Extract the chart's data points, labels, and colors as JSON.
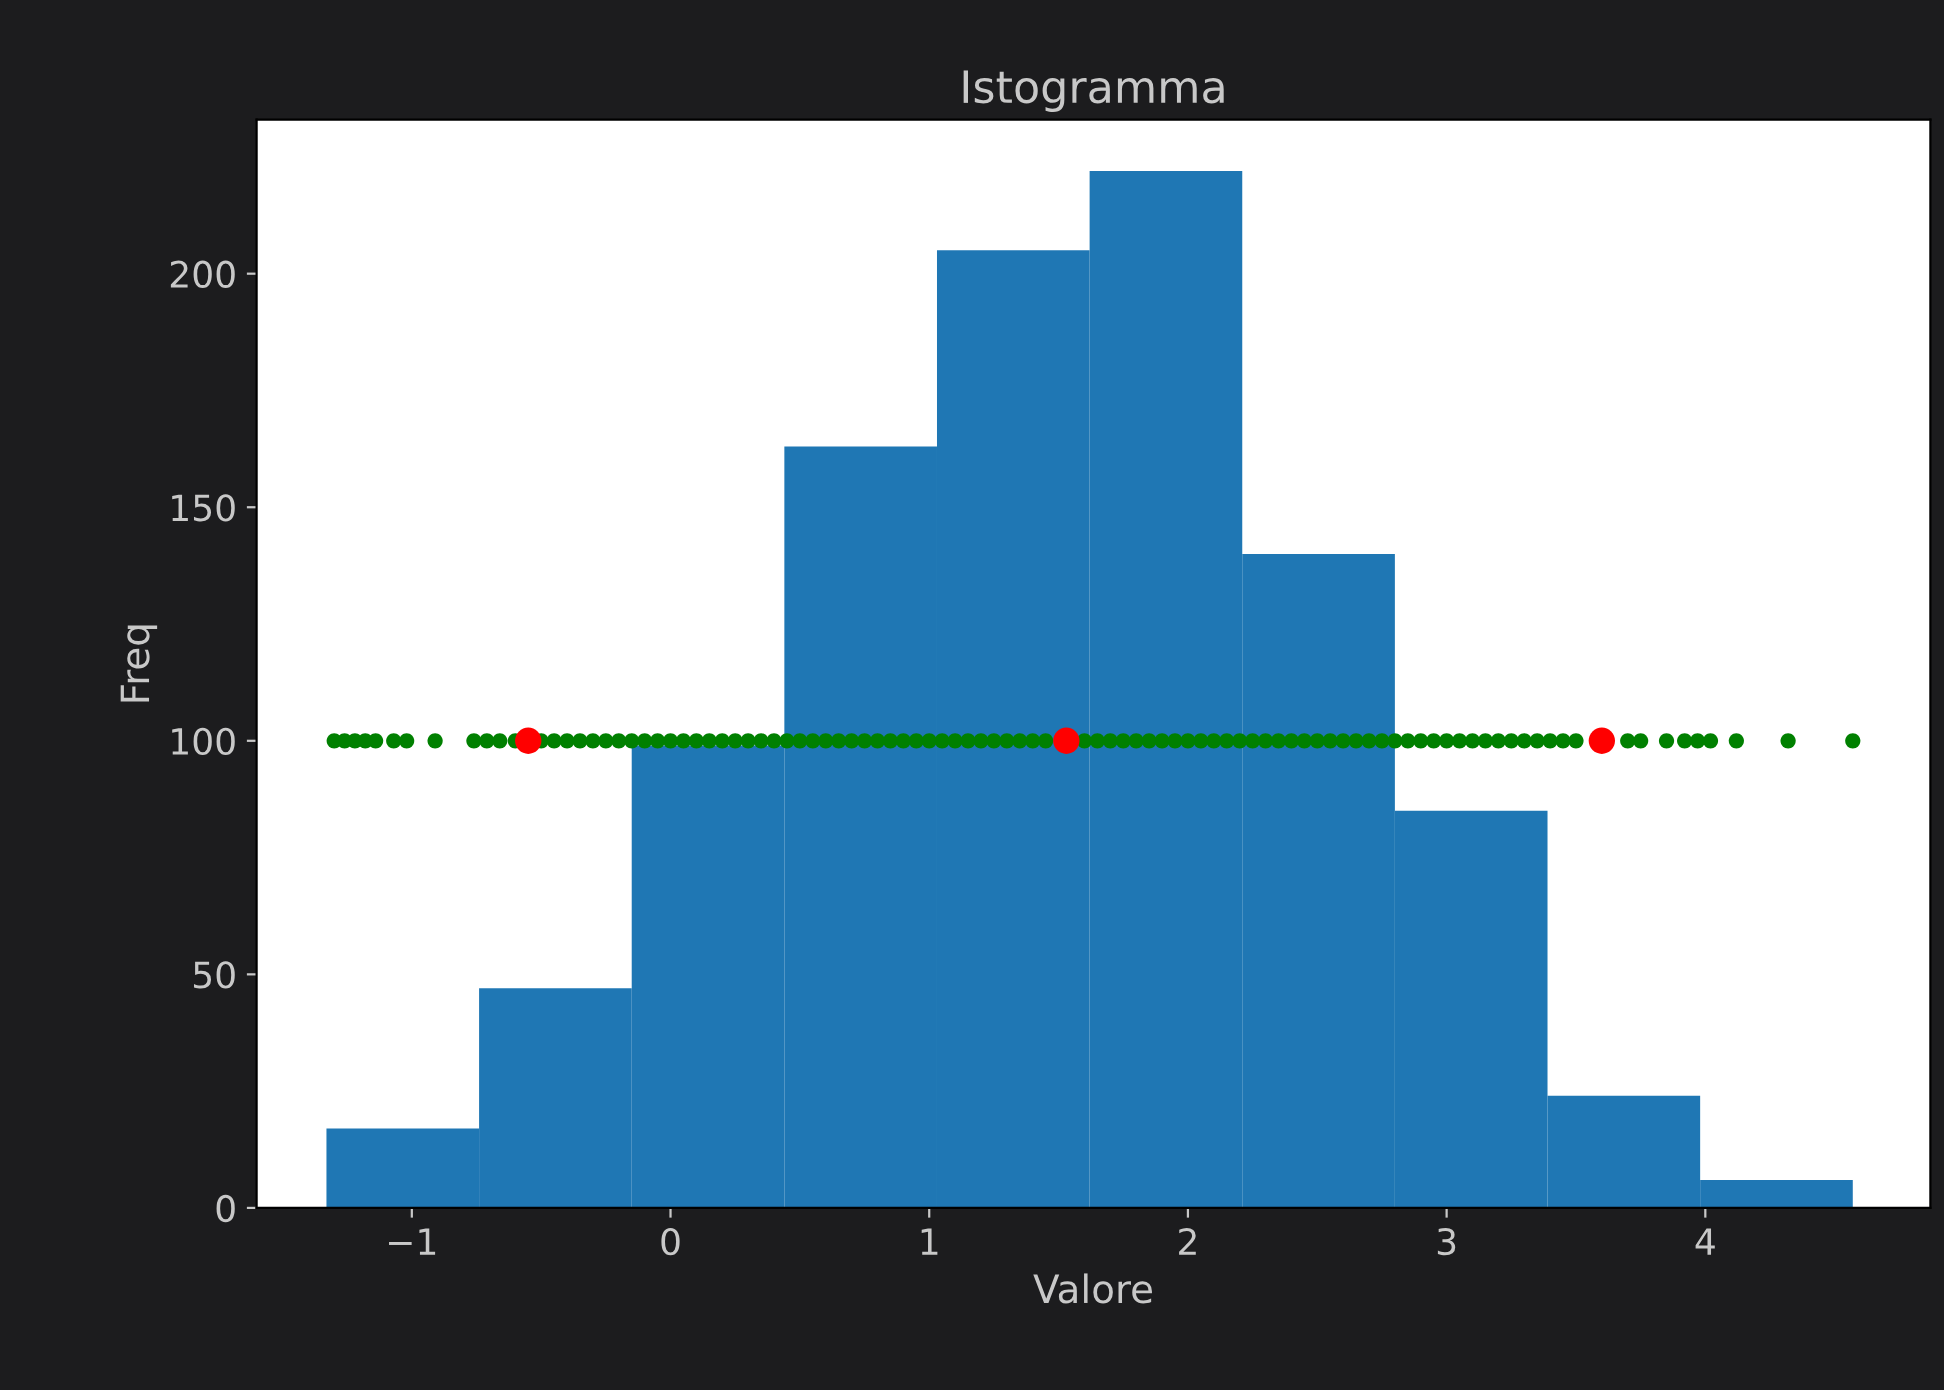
{
  "chart_data": {
    "type": "histogram",
    "title": "Istogramma",
    "xlabel": "Valore",
    "ylabel": "Freq",
    "bins": [
      -1.33,
      -0.74,
      -0.15,
      0.44,
      1.03,
      1.62,
      2.21,
      2.8,
      3.39,
      3.98,
      4.57
    ],
    "values": [
      17,
      47,
      99,
      163,
      205,
      222,
      140,
      85,
      24,
      6
    ],
    "color": "#1f77b4",
    "xlim": [
      -1.6,
      4.87
    ],
    "ylim": [
      0,
      233
    ],
    "xticks": [
      {
        "value": -1,
        "label": "−1"
      },
      0,
      1,
      2,
      3,
      4
    ],
    "yticks": [
      0,
      50,
      100,
      150,
      200
    ],
    "marker": "circle",
    "series": [
      {
        "type": "scatter",
        "color": "#008000",
        "x": [
          -1.3,
          -1.26,
          -1.22,
          -1.18,
          -1.14,
          -1.07,
          -1.02,
          -0.91,
          -0.76,
          -0.71,
          -0.66,
          -0.6,
          -0.5,
          -0.45,
          -0.4,
          -0.35,
          -0.3,
          -0.25,
          -0.2,
          -0.15,
          -0.1,
          -0.05,
          0,
          0.05,
          0.1,
          0.15,
          0.2,
          0.25,
          0.3,
          0.35,
          0.4,
          0.45,
          0.5,
          0.55,
          0.6,
          0.65,
          0.7,
          0.75,
          0.8,
          0.85,
          0.9,
          0.95,
          1,
          1.05,
          1.1,
          1.15,
          1.2,
          1.25,
          1.3,
          1.35,
          1.4,
          1.45,
          1.6,
          1.65,
          1.7,
          1.75,
          1.8,
          1.85,
          1.9,
          1.95,
          2,
          2.05,
          2.1,
          2.15,
          2.2,
          2.25,
          2.3,
          2.35,
          2.4,
          2.45,
          2.5,
          2.55,
          2.6,
          2.65,
          2.7,
          2.75,
          2.8,
          2.85,
          2.9,
          2.95,
          3,
          3.05,
          3.1,
          3.15,
          3.2,
          3.25,
          3.3,
          3.35,
          3.4,
          3.45,
          3.5,
          3.7,
          3.75,
          3.85,
          3.92,
          3.97,
          4.02,
          4.12,
          4.32,
          4.57
        ],
        "values": [
          100,
          100,
          100,
          100,
          100,
          100,
          100,
          100,
          100,
          100,
          100,
          100,
          100,
          100,
          100,
          100,
          100,
          100,
          100,
          100,
          100,
          100,
          100,
          100,
          100,
          100,
          100,
          100,
          100,
          100,
          100,
          100,
          100,
          100,
          100,
          100,
          100,
          100,
          100,
          100,
          100,
          100,
          100,
          100,
          100,
          100,
          100,
          100,
          100,
          100,
          100,
          100,
          100,
          100,
          100,
          100,
          100,
          100,
          100,
          100,
          100,
          100,
          100,
          100,
          100,
          100,
          100,
          100,
          100,
          100,
          100,
          100,
          100,
          100,
          100,
          100,
          100,
          100,
          100,
          100,
          100,
          100,
          100,
          100,
          100,
          100,
          100,
          100,
          100,
          100,
          100,
          100,
          100,
          100,
          100,
          100,
          100,
          100,
          100,
          100
        ]
      },
      {
        "type": "scatter",
        "color": "#ff0000",
        "x": [
          -0.55,
          1.53,
          3.6
        ],
        "values": [
          100,
          100,
          100
        ]
      }
    ]
  }
}
